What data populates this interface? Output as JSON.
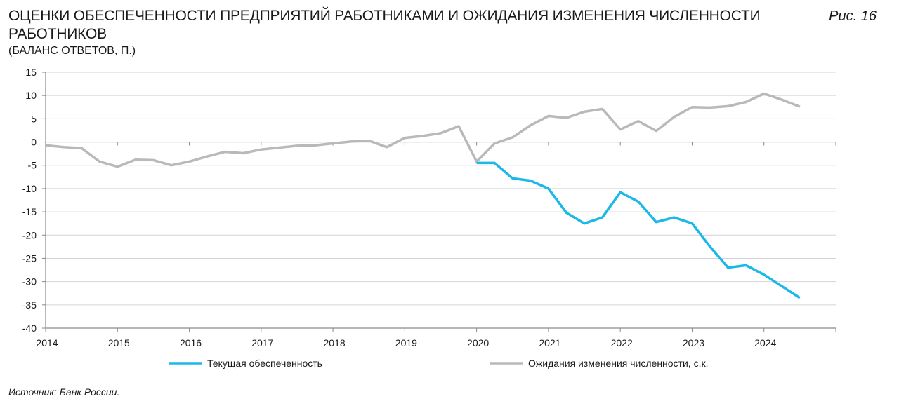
{
  "header": {
    "title": "ОЦЕНКИ ОБЕСПЕЧЕННОСТИ ПРЕДПРИЯТИЙ РАБОТНИКАМИ И ОЖИДАНИЯ ИЗМЕНЕНИЯ ЧИСЛЕННОСТИ РАБОТНИКОВ",
    "subtitle": "(БАЛАНС ОТВЕТОВ, П.)",
    "figure_label": "Рис. 16"
  },
  "footer": {
    "source": "Источник: Банк России."
  },
  "chart_data": {
    "type": "line",
    "title": "ОЦЕНКИ ОБЕСПЕЧЕННОСТИ ПРЕДПРИЯТИЙ РАБОТНИКАМИ И ОЖИДАНИЯ ИЗМЕНЕНИЯ ЧИСЛЕННОСТИ РАБОТНИКОВ",
    "ylabel": "(БАЛАНС ОТВЕТОВ, П.)",
    "xlabel": "",
    "ylim": [
      -40,
      15
    ],
    "yticks": [
      15,
      10,
      5,
      0,
      -5,
      -10,
      -15,
      -20,
      -25,
      -30,
      -35,
      -40
    ],
    "xlim": [
      2014,
      2025
    ],
    "xticks": [
      2014,
      2015,
      2016,
      2017,
      2018,
      2019,
      2020,
      2021,
      2022,
      2023,
      2024
    ],
    "grid": true,
    "legend_position": "bottom",
    "series": [
      {
        "name": "Текущая обеспеченность",
        "color": "#1bb8e8",
        "x": [
          2020.0,
          2020.25,
          2020.5,
          2020.75,
          2021.0,
          2021.25,
          2021.5,
          2021.75,
          2022.0,
          2022.25,
          2022.5,
          2022.75,
          2023.0,
          2023.25,
          2023.5,
          2023.75,
          2024.0,
          2024.25,
          2024.5
        ],
        "values": [
          -4.5,
          -4.5,
          -7.8,
          -8.3,
          -10.0,
          -15.2,
          -17.5,
          -16.2,
          -10.8,
          -12.8,
          -17.2,
          -16.2,
          -17.5,
          -22.5,
          -27.0,
          -26.5,
          -28.5,
          -31.0,
          -33.5
        ]
      },
      {
        "name": "Ожидания изменения численности, с.к.",
        "color": "#b9b9b9",
        "x": [
          2014.0,
          2014.25,
          2014.5,
          2014.75,
          2015.0,
          2015.25,
          2015.5,
          2015.75,
          2016.0,
          2016.25,
          2016.5,
          2016.75,
          2017.0,
          2017.25,
          2017.5,
          2017.75,
          2018.0,
          2018.25,
          2018.5,
          2018.75,
          2019.0,
          2019.25,
          2019.5,
          2019.75,
          2020.0,
          2020.25,
          2020.5,
          2020.75,
          2021.0,
          2021.25,
          2021.5,
          2021.75,
          2022.0,
          2022.25,
          2022.5,
          2022.75,
          2023.0,
          2023.25,
          2023.5,
          2023.75,
          2024.0,
          2024.25,
          2024.5
        ],
        "values": [
          -0.7,
          -1.1,
          -1.3,
          -4.2,
          -5.3,
          -3.8,
          -3.9,
          -5.0,
          -4.2,
          -3.1,
          -2.1,
          -2.4,
          -1.6,
          -1.2,
          -0.8,
          -0.7,
          -0.3,
          0.1,
          0.3,
          -1.1,
          0.9,
          1.3,
          1.9,
          3.4,
          -4.2,
          -0.3,
          1.0,
          3.6,
          5.6,
          5.2,
          6.5,
          7.1,
          2.7,
          4.5,
          2.4,
          5.4,
          7.5,
          7.4,
          7.7,
          8.6,
          10.4,
          9.1,
          7.6
        ]
      }
    ]
  }
}
